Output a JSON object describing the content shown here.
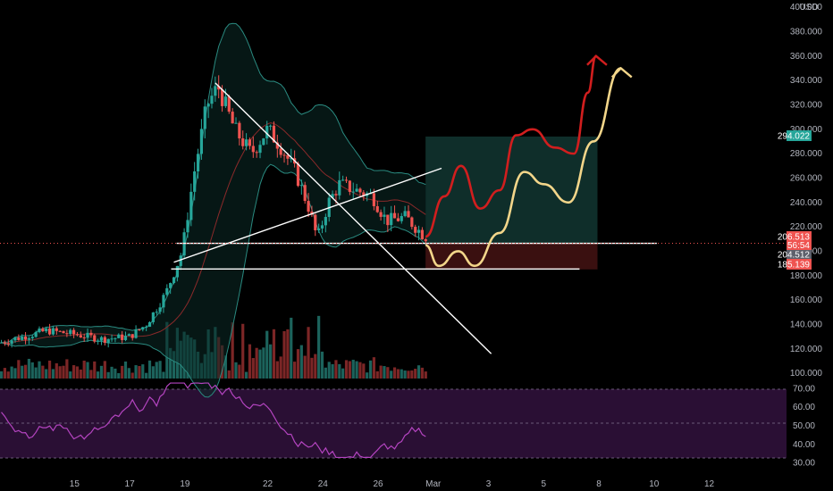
{
  "currency_label": "USD",
  "colors": {
    "background": "#000000",
    "up": "#26a69a",
    "down": "#ef5350",
    "bb_band": "#2a8a80",
    "bb_basis": "#8a2a2a",
    "trend_line": "#ffffff",
    "rsi": "#b444c0",
    "rsi_band": "#2a0f34",
    "target_zone": "#0f2e2a",
    "stop_zone": "#3a1010",
    "path_red": "#d11e1e",
    "path_yellow": "#f3d68a",
    "price_tag_current": "#ef5350",
    "price_tag_green": "#26a69a",
    "price_tag_gray": "#5d606b"
  },
  "chart_data": {
    "type": "candlestick",
    "y_axis_ticks": [
      "400.000",
      "380.000",
      "360.000",
      "340.000",
      "320.000",
      "300.000",
      "280.000",
      "260.000",
      "240.000",
      "220.000",
      "200.000",
      "180.000",
      "160.000",
      "140.000",
      "120.000",
      "100.000"
    ],
    "y_axis_values": [
      400,
      380,
      360,
      340,
      320,
      300,
      280,
      260,
      240,
      220,
      200,
      180,
      160,
      140,
      120,
      100
    ],
    "ylim": [
      84,
      403
    ],
    "x_axis_labels": [
      "15",
      "17",
      "19",
      "22",
      "24",
      "26",
      "Mar",
      "3",
      "5",
      "8",
      "10",
      "12"
    ],
    "x_axis_positions": [
      15,
      17,
      19,
      22,
      24,
      26,
      28,
      30,
      32,
      34,
      36,
      38
    ],
    "xlim": [
      12.3,
      40.8
    ],
    "price_tags": [
      {
        "value": 294.022,
        "label": "294.022",
        "kind": "green"
      },
      {
        "value": 206.513,
        "label": "206.513",
        "kind": "current"
      },
      {
        "value": 204.512,
        "label": "204.512",
        "kind": "gray"
      },
      {
        "value": 185.139,
        "label": "185.139",
        "kind": "current"
      }
    ],
    "countdown_label": "56:54",
    "rsi_ticks": [
      "70.00",
      "60.00",
      "50.00",
      "40.00",
      "30.00"
    ],
    "rsi_values": [
      70,
      60,
      50,
      40,
      30
    ],
    "rsi_lim": [
      26,
      74
    ],
    "rsi_band": [
      30,
      70
    ]
  }
}
